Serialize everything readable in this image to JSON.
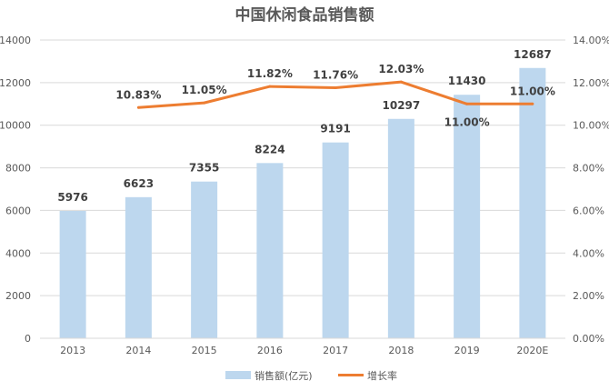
{
  "chart_data": {
    "type": "bar",
    "title": "中国休闲食品销售额",
    "categories": [
      "2013",
      "2014",
      "2015",
      "2016",
      "2017",
      "2018",
      "2019",
      "2020E"
    ],
    "series": [
      {
        "name": "销售额(亿元)",
        "type": "bar",
        "axis": "left",
        "values": [
          5976,
          6623,
          7355,
          8224,
          9191,
          10297,
          11430,
          12687
        ],
        "labels": [
          "5976",
          "6623",
          "7355",
          "8224",
          "9191",
          "10297",
          "11430",
          "12687"
        ]
      },
      {
        "name": "增长率",
        "type": "line",
        "axis": "right",
        "values": [
          null,
          10.83,
          11.05,
          11.82,
          11.76,
          12.03,
          11.0,
          11.0
        ],
        "labels": [
          "",
          "10.83%",
          "11.05%",
          "11.82%",
          "11.76%",
          "12.03%",
          "11.00%",
          "11.00%"
        ]
      }
    ],
    "y_left": {
      "range": [
        0,
        14000
      ],
      "ticks": [
        "0",
        "2000",
        "4000",
        "6000",
        "8000",
        "10000",
        "12000",
        "14000"
      ]
    },
    "y_right": {
      "range": [
        0,
        14
      ],
      "ticks": [
        "0.00%",
        "2.00%",
        "4.00%",
        "6.00%",
        "8.00%",
        "10.00%",
        "12.00%",
        "14.00%"
      ]
    },
    "grid": true,
    "legend_position": "bottom",
    "colors": {
      "bar": "#bdd7ee",
      "line": "#ed7d31",
      "grid": "#d9d9d9",
      "text": "#595959",
      "label": "#404040"
    }
  }
}
